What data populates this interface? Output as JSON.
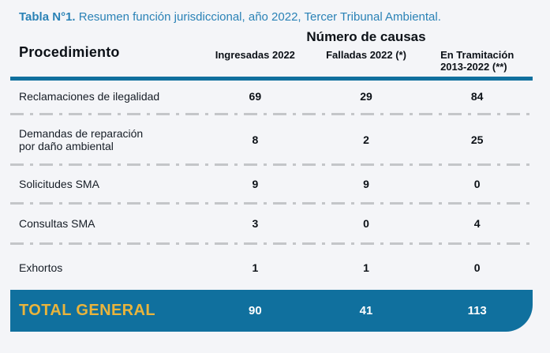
{
  "title": {
    "prefix": "Tabla N°1.",
    "rest": " Resumen función jurisdiccional, año 2022, Tercer Tribunal Ambiental."
  },
  "header": {
    "procedure_col": "Procedimiento",
    "group": "Número de causas",
    "sub_columns": [
      "Ingresadas 2022",
      "Falladas 2022 (*)",
      "En Tramitación\n2013-2022 (**)"
    ]
  },
  "rows": [
    {
      "label": "Reclamaciones de ilegalidad",
      "values": [
        69,
        29,
        84
      ]
    },
    {
      "label": "Demandas de reparación\npor daño ambiental",
      "values": [
        8,
        2,
        25
      ]
    },
    {
      "label": "Solicitudes SMA",
      "values": [
        9,
        9,
        0
      ]
    },
    {
      "label": "Consultas SMA",
      "values": [
        3,
        0,
        4
      ]
    },
    {
      "label": "Exhortos",
      "values": [
        1,
        1,
        0
      ]
    }
  ],
  "total": {
    "label": "TOTAL GENERAL",
    "values": [
      90,
      41,
      113
    ]
  },
  "colors": {
    "accent_blue": "#10709E",
    "title_blue": "#2A82B6",
    "gold": "#E9B43C",
    "text_dark": "#0C1117",
    "dash_gray": "#C4C6C9",
    "background": "#F4F5F8"
  },
  "chart_data": {
    "type": "table",
    "title": "Tabla N°1. Resumen función jurisdiccional, año 2022, Tercer Tribunal Ambiental.",
    "column_group": "Número de causas",
    "columns": [
      "Procedimiento",
      "Ingresadas 2022",
      "Falladas 2022 (*)",
      "En Tramitación 2013-2022 (**)"
    ],
    "rows": [
      [
        "Reclamaciones de ilegalidad",
        69,
        29,
        84
      ],
      [
        "Demandas de reparación por daño ambiental",
        8,
        2,
        25
      ],
      [
        "Solicitudes SMA",
        9,
        9,
        0
      ],
      [
        "Consultas SMA",
        3,
        0,
        4
      ],
      [
        "Exhortos",
        1,
        1,
        0
      ]
    ],
    "total_row": [
      "TOTAL GENERAL",
      90,
      41,
      113
    ]
  }
}
